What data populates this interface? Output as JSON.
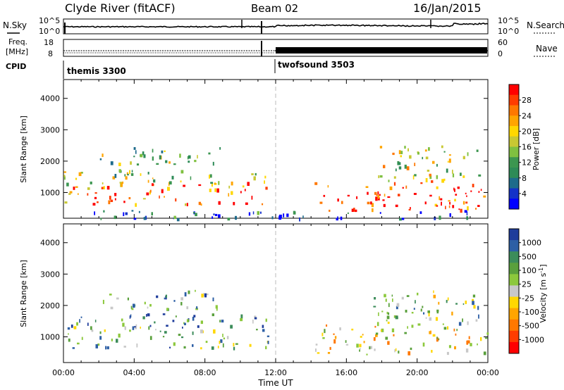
{
  "header": {
    "station": "Clyde River (fitACF)",
    "beam": "Beam 02",
    "date": "16/Jan/2015"
  },
  "summary_panels": {
    "left_labels": {
      "nsky": "N.Sky",
      "freq_top": "Freq.",
      "freq_bottom": "[MHz]",
      "cpid": "CPID"
    },
    "right_labels": {
      "nsearch": "N.Search",
      "nave": "Nave"
    },
    "noise_ticks_left": [
      "10^5",
      "10^0"
    ],
    "noise_ticks_right": [
      "10^5",
      "10^0"
    ],
    "freq_ticks_left": [
      "18",
      "8"
    ],
    "nave_ticks_right": [
      "60",
      "0"
    ]
  },
  "cpid_segments": [
    {
      "name": "themis 3300",
      "start_h": 0,
      "end_h": 11.95
    },
    {
      "name": "twofsound 3503",
      "start_h": 11.95,
      "end_h": 24
    }
  ],
  "chart_data": [
    {
      "type": "heatmap",
      "title": "",
      "quantity": "Power",
      "xlabel": "Time UT",
      "ylabel": "Slant Range [km]",
      "x_ticks": [
        "00:00",
        "04:00",
        "08:00",
        "12:00",
        "16:00",
        "20:00",
        "00:00"
      ],
      "x_range_hours": [
        0,
        24
      ],
      "y_ticks": [
        1000,
        2000,
        3000,
        4000
      ],
      "ylim": [
        180,
        4600
      ],
      "colorbar": {
        "label": "Power [dB]",
        "ticks": [
          "28",
          "24",
          "20",
          "16",
          "12",
          "8",
          "4"
        ],
        "colors": [
          "#ff0000",
          "#ff3c00",
          "#ff7800",
          "#ffa500",
          "#ffd700",
          "#c8c832",
          "#7fc040",
          "#3c9650",
          "#2e8b57",
          "#1e6b8b",
          "#1432c8",
          "#0000ff"
        ]
      },
      "regions": [
        {
          "x": [
            0,
            11.6
          ],
          "y": [
            650,
            1350
          ],
          "intensity": 0.8
        },
        {
          "x": [
            0,
            11.6
          ],
          "y": [
            1300,
            1750
          ],
          "intensity": 0.5
        },
        {
          "x": [
            14.2,
            24
          ],
          "y": [
            450,
            1400
          ],
          "intensity": 0.92
        },
        {
          "x": [
            17.5,
            23.5
          ],
          "y": [
            1400,
            2500
          ],
          "intensity": 0.55
        },
        {
          "x": [
            0,
            24
          ],
          "y": [
            180,
            450
          ],
          "intensity": 0.15
        },
        {
          "x": [
            2,
            9
          ],
          "y": [
            1900,
            2500
          ],
          "intensity": 0.45
        }
      ]
    },
    {
      "type": "heatmap",
      "title": "",
      "quantity": "Velocity",
      "xlabel": "Time UT",
      "ylabel": "Slant Range [km]",
      "x_ticks": [
        "00:00",
        "04:00",
        "08:00",
        "12:00",
        "16:00",
        "20:00",
        "00:00"
      ],
      "x_range_hours": [
        0,
        24
      ],
      "y_ticks": [
        1000,
        2000,
        3000,
        4000
      ],
      "ylim": [
        180,
        4600
      ],
      "colorbar": {
        "label": "Velocity [m s^-1]",
        "ticks": [
          "1000",
          "500",
          "100",
          "25",
          "-25",
          "-100",
          "-500",
          "-1000"
        ],
        "colors": [
          "#1e3c9b",
          "#2d5fa5",
          "#3c8c5a",
          "#5aa03c",
          "#8cc83c",
          "#c8c8c8",
          "#ffd700",
          "#ffa500",
          "#ff7800",
          "#ff3c00",
          "#ff0000"
        ]
      },
      "regions": [
        {
          "x": [
            0,
            11.6
          ],
          "y": [
            650,
            1350
          ],
          "intensity": 0.35
        },
        {
          "x": [
            0,
            11.6
          ],
          "y": [
            1300,
            1750
          ],
          "intensity": 0.25
        },
        {
          "x": [
            14.2,
            24
          ],
          "y": [
            450,
            1400
          ],
          "intensity": 0.55
        },
        {
          "x": [
            17.5,
            23.5
          ],
          "y": [
            1400,
            2500
          ],
          "intensity": 0.4
        },
        {
          "x": [
            2,
            9
          ],
          "y": [
            1900,
            2500
          ],
          "intensity": 0.3
        }
      ]
    }
  ]
}
